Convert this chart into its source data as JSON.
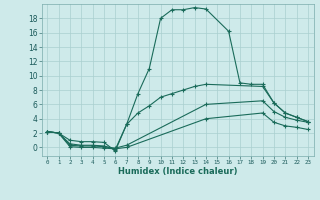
{
  "xlabel": "Humidex (Indice chaleur)",
  "background_color": "#ceeaea",
  "line_color": "#1a6b5a",
  "grid_color": "#aacfcf",
  "ylim": [
    -1.2,
    20
  ],
  "xlim": [
    -0.5,
    23.5
  ],
  "yticks": [
    0,
    2,
    4,
    6,
    8,
    10,
    12,
    14,
    16,
    18
  ],
  "xtick_labels": [
    "0",
    "1",
    "2",
    "3",
    "4",
    "5",
    "6",
    "7",
    "8",
    "9",
    "1011",
    "1213",
    "14",
    "",
    "1617",
    "1819",
    "2021",
    "2223"
  ],
  "series": [
    {
      "x": [
        0,
        1,
        2,
        3,
        4,
        5,
        6,
        7,
        8,
        9,
        10,
        11,
        12,
        13,
        14,
        16,
        17,
        18,
        19,
        20,
        21,
        22,
        23
      ],
      "y": [
        2.2,
        2.0,
        1.0,
        0.8,
        0.8,
        0.7,
        -0.5,
        3.2,
        7.5,
        11.0,
        18.0,
        19.2,
        19.2,
        19.5,
        19.3,
        16.2,
        9.0,
        8.8,
        8.8,
        6.2,
        4.8,
        4.2,
        3.6
      ]
    },
    {
      "x": [
        0,
        1,
        2,
        3,
        4,
        5,
        6,
        7,
        8,
        9,
        10,
        11,
        12,
        13,
        14,
        19,
        20,
        21,
        22,
        23
      ],
      "y": [
        2.2,
        2.0,
        0.5,
        0.3,
        0.3,
        0.2,
        -0.3,
        3.2,
        4.8,
        5.8,
        7.0,
        7.5,
        8.0,
        8.5,
        8.8,
        8.5,
        6.2,
        4.8,
        4.2,
        3.6
      ]
    },
    {
      "x": [
        0,
        1,
        2,
        3,
        4,
        5,
        6,
        7,
        14,
        19,
        20,
        21,
        22,
        23
      ],
      "y": [
        2.2,
        2.0,
        0.3,
        0.2,
        0.2,
        0.1,
        -0.1,
        0.3,
        6.0,
        6.5,
        5.0,
        4.2,
        3.8,
        3.5
      ]
    },
    {
      "x": [
        0,
        1,
        2,
        3,
        4,
        5,
        6,
        7,
        14,
        19,
        20,
        21,
        22,
        23
      ],
      "y": [
        2.2,
        2.0,
        0.1,
        0.0,
        0.0,
        -0.1,
        -0.2,
        0.0,
        4.0,
        4.8,
        3.5,
        3.0,
        2.8,
        2.5
      ]
    }
  ]
}
